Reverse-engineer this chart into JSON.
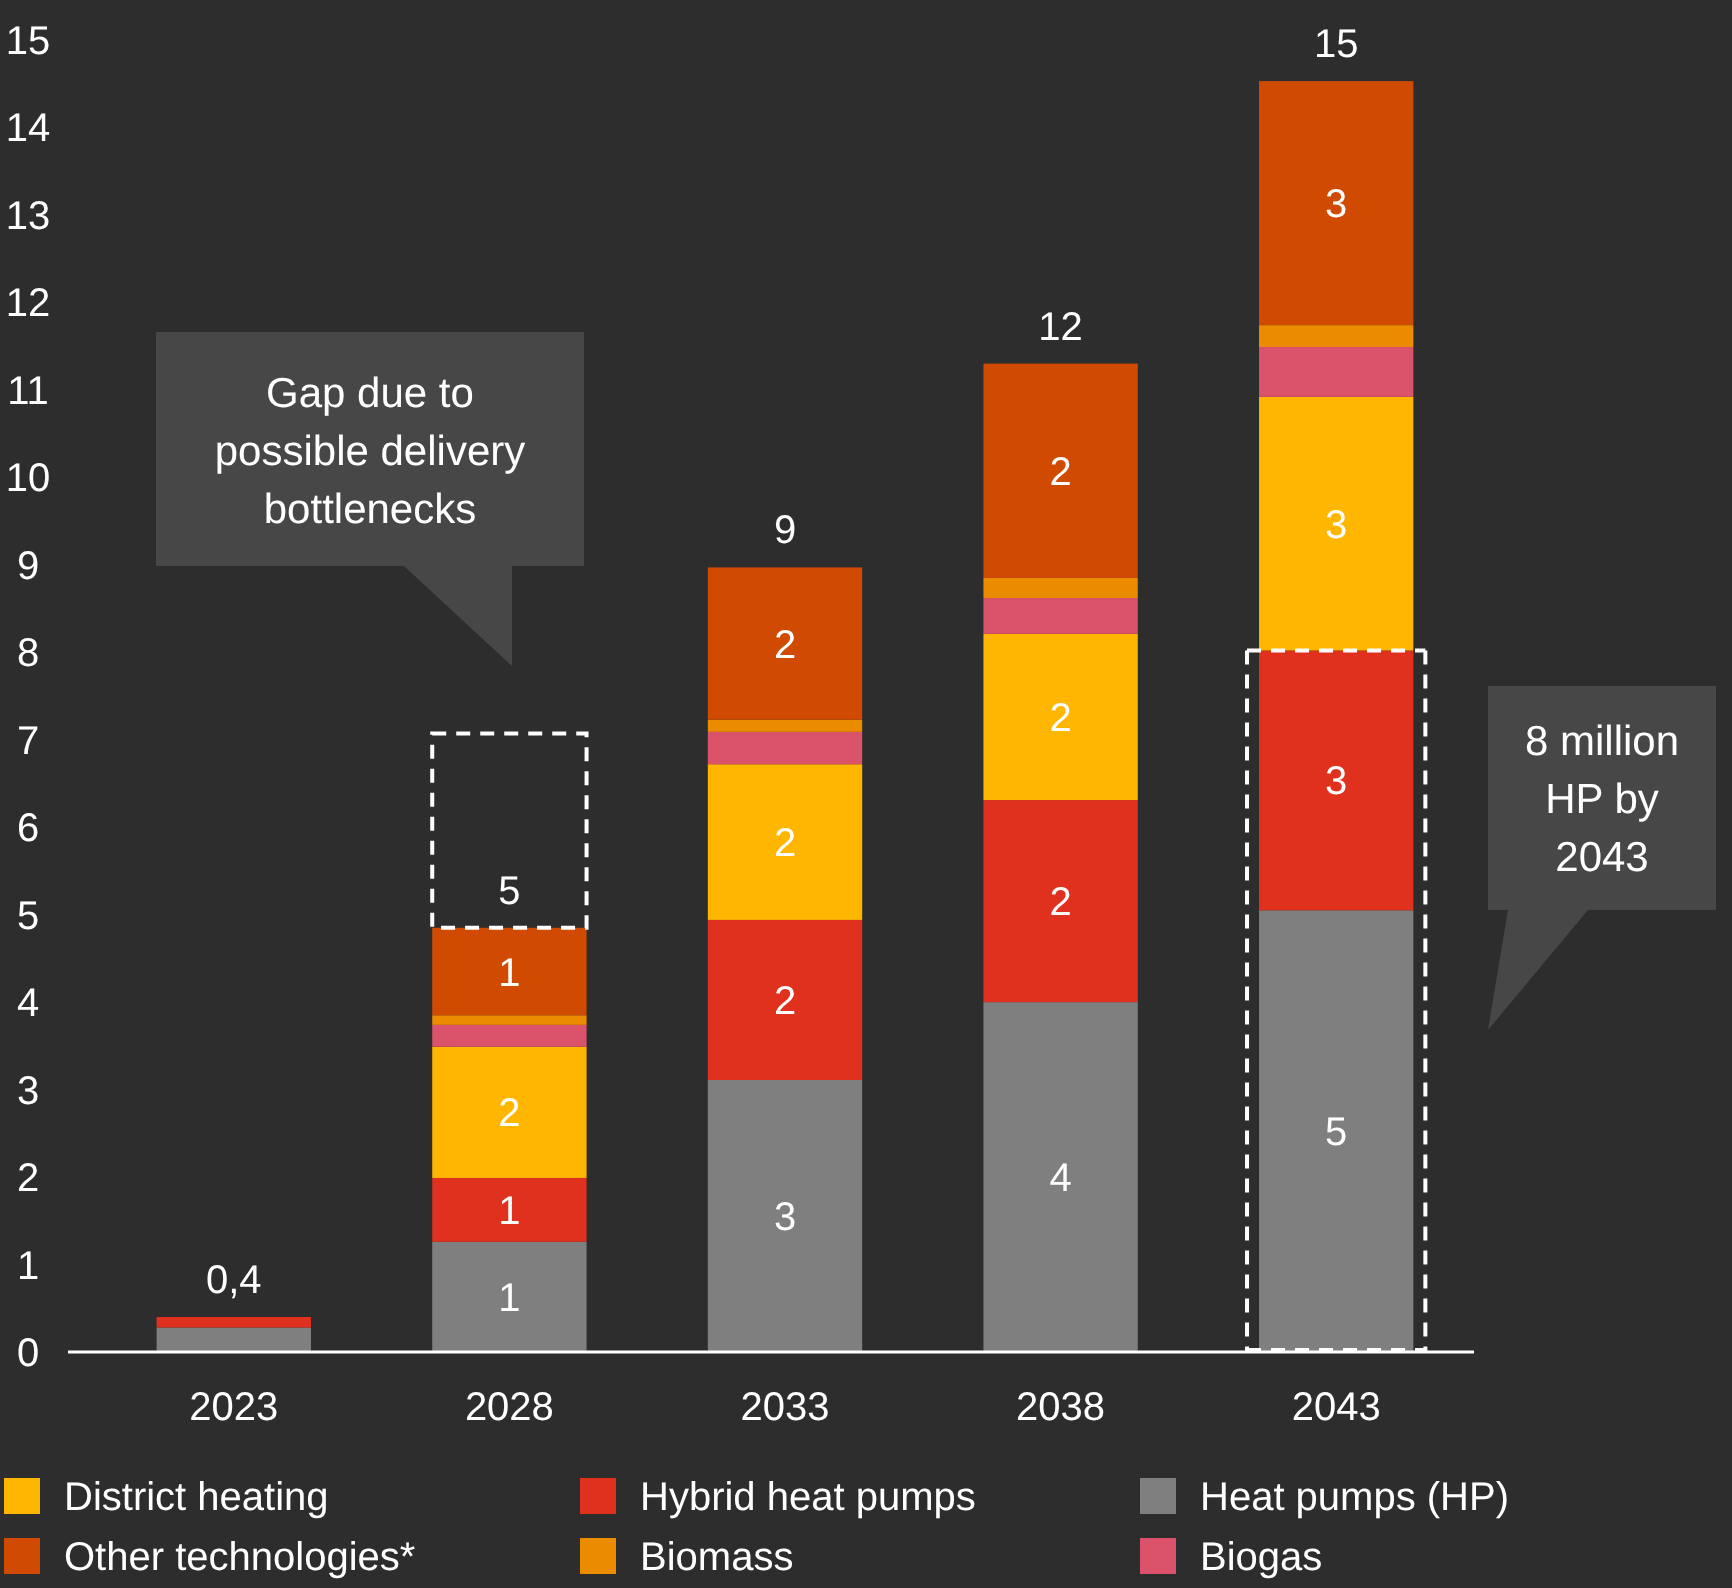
{
  "chart_data": {
    "type": "bar",
    "stacked": true,
    "categories": [
      "2023",
      "2028",
      "2033",
      "2038",
      "2043"
    ],
    "series": [
      {
        "name": "Heat pumps (HP)",
        "color": "#7f7f7f",
        "values": [
          0.28,
          1.26,
          3.11,
          4.0,
          5.05
        ],
        "value_labels": [
          null,
          "1",
          "3",
          "4",
          "5"
        ]
      },
      {
        "name": "Hybrid heat pumps",
        "color": "#e0301e",
        "values": [
          0.12,
          0.73,
          1.83,
          2.31,
          2.97
        ],
        "value_labels": [
          null,
          "1",
          "2",
          "2",
          "3"
        ]
      },
      {
        "name": "District heating",
        "color": "#ffb600",
        "values": [
          0,
          1.5,
          1.78,
          1.9,
          2.9
        ],
        "value_labels": [
          null,
          "2",
          "2",
          "2",
          "3"
        ]
      },
      {
        "name": "Biogas",
        "color": "#db536a",
        "values": [
          0,
          0.25,
          0.37,
          0.41,
          0.57
        ],
        "value_labels": [
          null,
          null,
          null,
          null,
          null
        ]
      },
      {
        "name": "Biomass",
        "color": "#eb8c00",
        "values": [
          0,
          0.11,
          0.14,
          0.23,
          0.25
        ],
        "value_labels": [
          null,
          null,
          null,
          null,
          null
        ]
      },
      {
        "name": "Other technologies*",
        "color": "#d04a02",
        "values": [
          0,
          1.0,
          1.74,
          2.45,
          2.79
        ],
        "value_labels": [
          null,
          "1",
          "2",
          "2",
          "3"
        ]
      },
      {
        "color": "#ffffff",
        "line_style": "dashed",
        "values": [
          null,
          2.22,
          null,
          null,
          null
        ]
      }
    ],
    "totals": [
      "0,4",
      "5",
      "9",
      "12",
      "15"
    ],
    "ylim": [
      0,
      15
    ],
    "yticks": [
      0,
      1,
      2,
      3,
      4,
      5,
      6,
      7,
      8,
      9,
      10,
      11,
      12,
      13,
      14,
      15
    ],
    "grid": false,
    "legend": "bottom",
    "annotations": [
      "Gap due to possible delivery bottlenecks",
      "8 million HP by 2043"
    ]
  }
}
